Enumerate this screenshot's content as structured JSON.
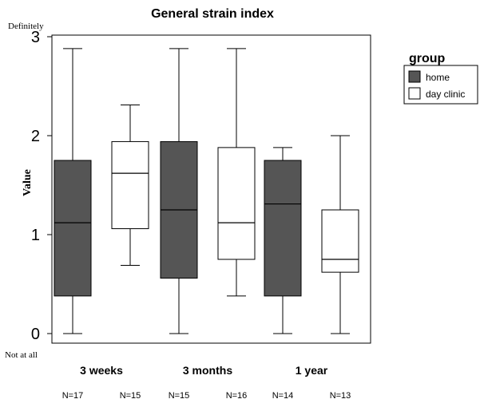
{
  "chart_data": {
    "type": "boxplot",
    "title": "General strain index",
    "ylabel": "Value",
    "y_top_label": "Definitely",
    "y_bottom_label": "Not at all",
    "ylim": [
      0,
      3
    ],
    "yticks": [
      0,
      1,
      2,
      3
    ],
    "categories": [
      "3 weeks",
      "3 months",
      "1 year"
    ],
    "legend": {
      "title": "group",
      "placement": "right",
      "entries": [
        {
          "label": "home",
          "color": "#555555"
        },
        {
          "label": "day clinic",
          "color": "#ffffff"
        }
      ]
    },
    "series": [
      {
        "name": "home",
        "color": "#555555",
        "boxes": [
          {
            "category": "3 weeks",
            "min": 0,
            "q1": 0.38,
            "median": 1.12,
            "q3": 1.75,
            "max": 2.88,
            "n": "N=17"
          },
          {
            "category": "3 months",
            "min": 0,
            "q1": 0.56,
            "median": 1.25,
            "q3": 1.94,
            "max": 2.88,
            "n": "N=15"
          },
          {
            "category": "1 year",
            "min": 0,
            "q1": 0.38,
            "median": 1.31,
            "q3": 1.75,
            "max": 1.88,
            "n": "N=14"
          }
        ]
      },
      {
        "name": "day clinic",
        "color": "#ffffff",
        "boxes": [
          {
            "category": "3 weeks",
            "min": 0.69,
            "q1": 1.06,
            "median": 1.62,
            "q3": 1.94,
            "max": 2.31,
            "n": "N=15"
          },
          {
            "category": "3 months",
            "min": 0.38,
            "q1": 0.75,
            "median": 1.12,
            "q3": 1.88,
            "max": 2.88,
            "n": "N=16"
          },
          {
            "category": "1 year",
            "min": 0,
            "q1": 0.62,
            "median": 0.75,
            "q3": 1.25,
            "max": 2.0,
            "n": "N=13"
          }
        ]
      }
    ]
  }
}
